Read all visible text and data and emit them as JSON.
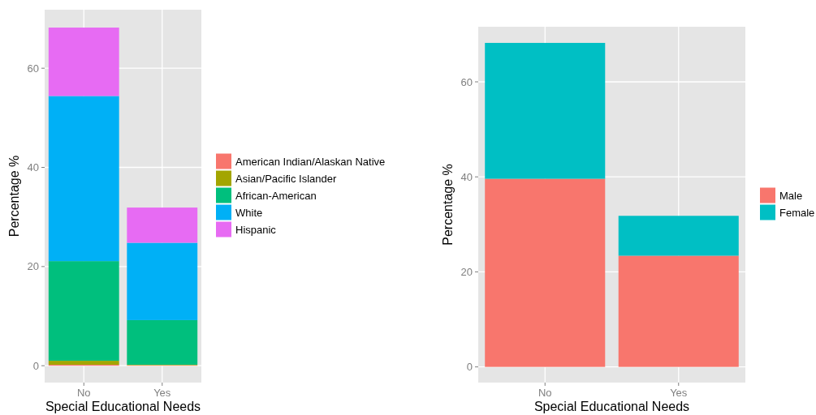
{
  "chart_data": [
    {
      "type": "bar",
      "stacked": true,
      "categories": [
        "No",
        "Yes"
      ],
      "xlabel": "Special Educational Needs",
      "ylabel": "Percentage %",
      "ylim": [
        -3.4,
        71.8
      ],
      "yticks": [
        0,
        20,
        40,
        60
      ],
      "grid": true,
      "legend": "right",
      "series": [
        {
          "name": "American Indian/Alaskan Native",
          "color": "#f8766d",
          "values": [
            0.2,
            0.1
          ]
        },
        {
          "name": "Asian/Pacific Islander",
          "color": "#a3a500",
          "values": [
            0.8,
            0.1
          ]
        },
        {
          "name": "African-American",
          "color": "#00bf7d",
          "values": [
            20.1,
            9.0
          ]
        },
        {
          "name": "White",
          "color": "#00b0f6",
          "values": [
            33.3,
            15.6
          ]
        },
        {
          "name": "Hispanic",
          "color": "#e76bf3",
          "values": [
            13.8,
            7.1
          ]
        }
      ]
    },
    {
      "type": "bar",
      "stacked": true,
      "categories": [
        "No",
        "Yes"
      ],
      "xlabel": "Special Educational Needs",
      "ylabel": "Percentage %",
      "ylim": [
        -3.3,
        71.6
      ],
      "yticks": [
        0,
        20,
        40,
        60
      ],
      "grid": true,
      "legend": "right",
      "series": [
        {
          "name": "Male",
          "color": "#f8766d",
          "values": [
            39.6,
            23.4
          ]
        },
        {
          "name": "Female",
          "color": "#00bfc4",
          "values": [
            28.6,
            8.4
          ]
        }
      ]
    }
  ]
}
